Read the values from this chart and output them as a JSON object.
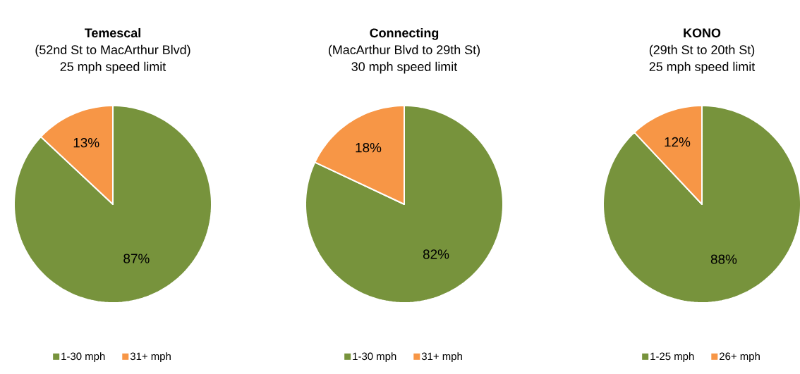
{
  "chart_data": [
    {
      "type": "pie",
      "title": "Temescal",
      "subtitle": "(52nd St to MacArthur Blvd)",
      "annotations": [
        "25 mph speed limit"
      ],
      "categories": [
        "1-30 mph",
        "31+ mph"
      ],
      "values": [
        87,
        13
      ],
      "colors": [
        "#77933c",
        "#f79646"
      ],
      "value_labels": [
        "87%",
        "13%"
      ],
      "legend": "bottom"
    },
    {
      "type": "pie",
      "title": "Connecting",
      "subtitle": "(MacArthur Blvd to 29th St)",
      "annotations": [
        "30 mph speed limit"
      ],
      "categories": [
        "1-30 mph",
        "31+ mph"
      ],
      "values": [
        82,
        18
      ],
      "colors": [
        "#77933c",
        "#f79646"
      ],
      "value_labels": [
        "82%",
        "18%"
      ],
      "legend": "bottom"
    },
    {
      "type": "pie",
      "title": "KONO",
      "subtitle": "(29th St to 20th St)",
      "annotations": [
        "25 mph speed limit"
      ],
      "categories": [
        "1-25 mph",
        "26+ mph"
      ],
      "values": [
        88,
        12
      ],
      "colors": [
        "#77933c",
        "#f79646"
      ],
      "value_labels": [
        "88%",
        "12%"
      ],
      "legend": "bottom"
    }
  ]
}
